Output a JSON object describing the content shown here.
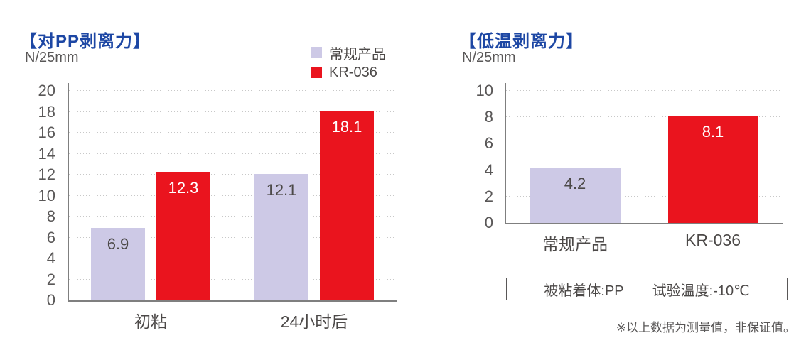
{
  "theme": {
    "title_blue": "#1d47a4",
    "kr036_red": "#ea141e",
    "regular_lavender": "#cdc9e6",
    "axis_gray": "#7f7f7f",
    "text_gray": "#595757"
  },
  "chart_data": [
    {
      "type": "bar",
      "title": "【对PP剥离力】",
      "ylabel": "N/25mm",
      "categories": [
        "初粘",
        "24小时后"
      ],
      "series": [
        {
          "name": "常规产品",
          "color": "#cdc9e6",
          "label_color": "#4c4948",
          "values": [
            6.9,
            12.1
          ]
        },
        {
          "name": "KR-036",
          "color": "#ea141e",
          "label_color": "#ffffff",
          "values": [
            12.3,
            18.1
          ]
        }
      ],
      "ylim": [
        0,
        20
      ],
      "ytick_step": 2,
      "grid": "dotted-horizontal",
      "legend_position": "top-right"
    },
    {
      "type": "bar",
      "title": "【低温剥离力】",
      "ylabel": "N/25mm",
      "categories": [
        "常规产品",
        "KR-036"
      ],
      "series": [
        {
          "name": "values",
          "colors": [
            "#cdc9e6",
            "#ea141e"
          ],
          "label_colors": [
            "#4c4948",
            "#ffffff"
          ],
          "values": [
            4.2,
            8.1
          ]
        }
      ],
      "ylim": [
        0,
        10
      ],
      "ytick_step": 2,
      "grid": "dotted-horizontal",
      "legend_position": "none",
      "note_box": [
        "被粘着体:PP",
        "试验温度:-10℃"
      ],
      "footnote": "※以上数据为测量值，非保证值。"
    }
  ]
}
